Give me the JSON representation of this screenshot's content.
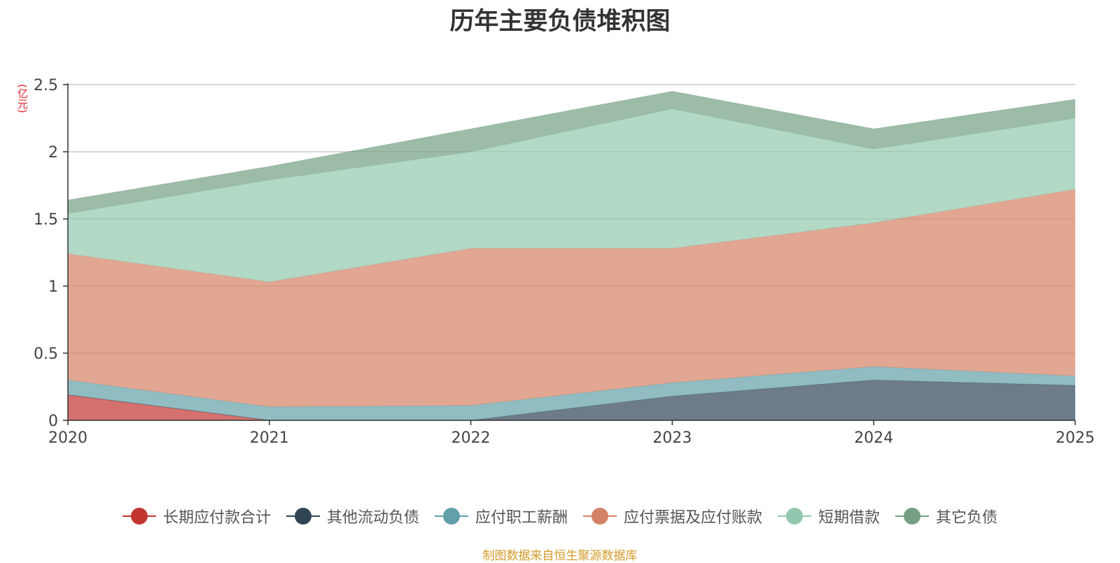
{
  "chart_data": {
    "type": "area",
    "stacked": true,
    "title": "历年主要负债堆积图",
    "unit_label": "(亿元)",
    "source": "制图数据来自恒生聚源数据库",
    "categories": [
      "2020",
      "2021",
      "2022",
      "2023",
      "2024",
      "2025"
    ],
    "ylim": [
      0,
      2.5
    ],
    "yticks": [
      0,
      0.5,
      1,
      1.5,
      2,
      2.5
    ],
    "ytick_labels": [
      "0",
      "0.5",
      "1",
      "1.5",
      "2",
      "2.5"
    ],
    "grid": true,
    "legend_position": "bottom",
    "series": [
      {
        "name": "长期应付款合计",
        "color": "#c23531",
        "values": [
          0.19,
          0.0,
          0.0,
          0.0,
          0.0,
          0.0
        ]
      },
      {
        "name": "其他流动负债",
        "color": "#2f4554",
        "values": [
          0.0,
          0.0,
          0.0,
          0.18,
          0.3,
          0.26
        ]
      },
      {
        "name": "应付职工薪酬",
        "color": "#61a0a8",
        "values": [
          0.11,
          0.1,
          0.11,
          0.1,
          0.1,
          0.07
        ]
      },
      {
        "name": "应付票据及应付账款",
        "color": "#d48265",
        "values": [
          0.94,
          0.93,
          1.17,
          1.0,
          1.07,
          1.39
        ]
      },
      {
        "name": "短期借款",
        "color": "#91c7ae",
        "values": [
          0.3,
          0.76,
          0.72,
          1.04,
          0.55,
          0.53
        ]
      },
      {
        "name": "其它负债",
        "color": "#749f83",
        "values": [
          0.1,
          0.1,
          0.17,
          0.13,
          0.15,
          0.14
        ]
      }
    ]
  }
}
